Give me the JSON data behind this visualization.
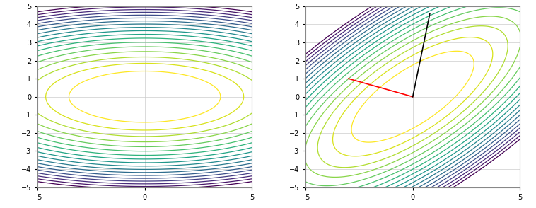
{
  "xlim": [
    -5,
    5
  ],
  "ylim": [
    -5,
    5
  ],
  "xticks": [
    -5,
    0,
    5
  ],
  "yticks": [
    -5,
    -4,
    -3,
    -2,
    -1,
    0,
    1,
    2,
    3,
    4,
    5
  ],
  "n_levels": 18,
  "cmap": "viridis_r",
  "figsize": [
    7.58,
    2.94
  ],
  "dpi": 100,
  "sd_line": [
    [
      -3.0,
      1.0
    ],
    [
      0.0,
      0.0
    ]
  ],
  "cg_line": [
    [
      0.0,
      0.0
    ],
    [
      0.8,
      4.6
    ]
  ],
  "sd_color": "red",
  "cg_color": "black",
  "grid_color": "#cccccc",
  "bg_color": "white",
  "linewidth": 0.9
}
